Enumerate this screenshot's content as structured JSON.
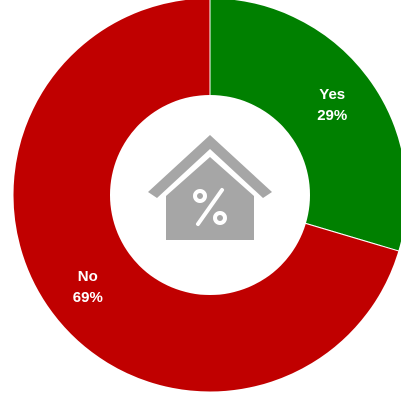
{
  "chart_data": {
    "type": "pie",
    "style": "donut",
    "categories": [
      "Yes",
      "No"
    ],
    "values": [
      29,
      69
    ],
    "value_labels": [
      "29%",
      "69%"
    ],
    "colors": [
      "#008000",
      "#C00000"
    ],
    "start_angle_deg": 0,
    "direction": "clockwise",
    "center_icon": "house-percent-icon",
    "center_icon_color": "#A6A6A6",
    "title": "",
    "legend": "none"
  }
}
